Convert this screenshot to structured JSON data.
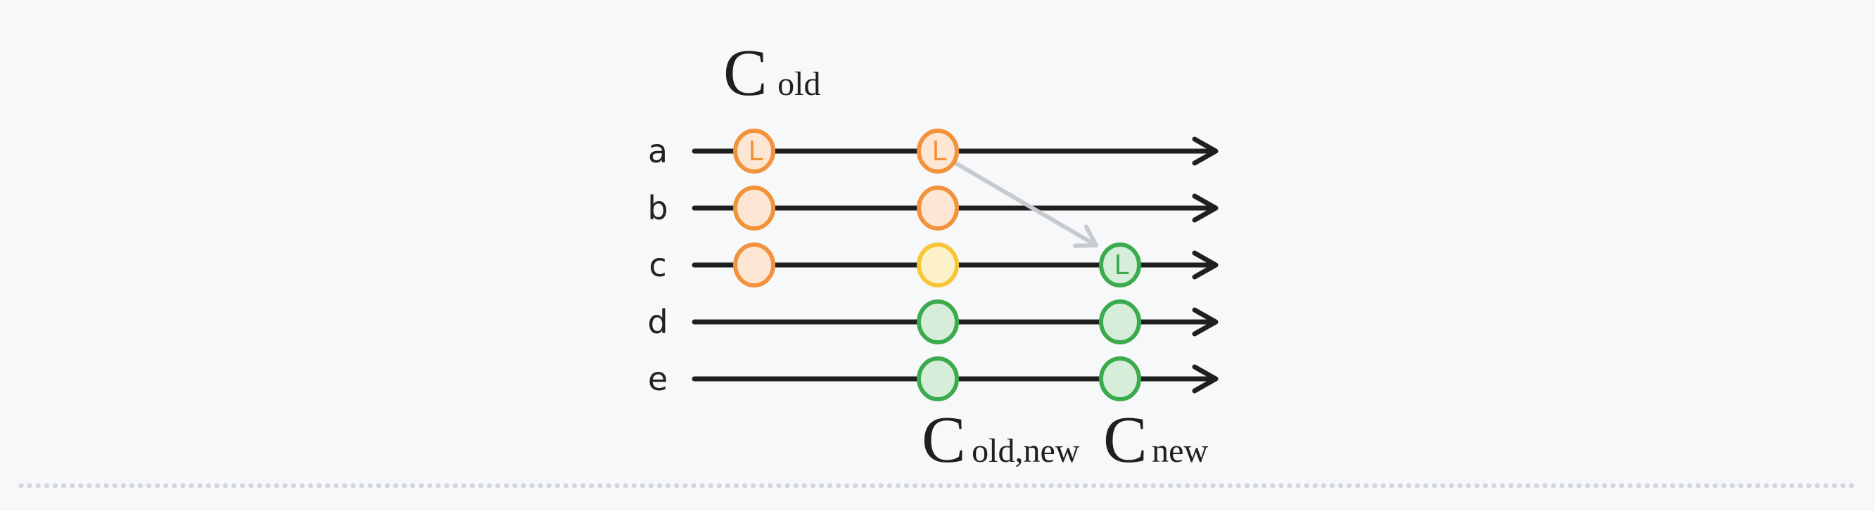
{
  "rows": [
    {
      "id": "a",
      "label": "a"
    },
    {
      "id": "b",
      "label": "b"
    },
    {
      "id": "c",
      "label": "c"
    },
    {
      "id": "d",
      "label": "d"
    },
    {
      "id": "e",
      "label": "e"
    }
  ],
  "labels": {
    "c_old": {
      "main": "C",
      "sub": "old"
    },
    "c_old_new": {
      "main": "C",
      "sub": "old,new"
    },
    "c_new": {
      "main": "C",
      "sub": "new"
    }
  },
  "nodes": [
    {
      "row": "a",
      "stage": 0,
      "status": "old",
      "leader": true,
      "leader_mark": "L"
    },
    {
      "row": "b",
      "stage": 0,
      "status": "old",
      "leader": false
    },
    {
      "row": "c",
      "stage": 0,
      "status": "old",
      "leader": false
    },
    {
      "row": "a",
      "stage": 1,
      "status": "old",
      "leader": true,
      "leader_mark": "L"
    },
    {
      "row": "b",
      "stage": 1,
      "status": "old",
      "leader": false
    },
    {
      "row": "c",
      "stage": 1,
      "status": "transition",
      "leader": false
    },
    {
      "row": "d",
      "stage": 1,
      "status": "new",
      "leader": false
    },
    {
      "row": "e",
      "stage": 1,
      "status": "new",
      "leader": false
    },
    {
      "row": "c",
      "stage": 2,
      "status": "new",
      "leader": true,
      "leader_mark": "L"
    },
    {
      "row": "d",
      "stage": 2,
      "status": "new",
      "leader": false
    },
    {
      "row": "e",
      "stage": 2,
      "status": "new",
      "leader": false
    }
  ],
  "transfer_arrow": {
    "from": {
      "row": "a",
      "stage": 1
    },
    "to": {
      "row": "c",
      "stage": 2
    }
  },
  "colors": {
    "old_stroke": "#f2923a",
    "old_fill": "#fde6d4",
    "transition_stroke": "#f6c636",
    "transition_fill": "#fdf1c9",
    "new_stroke": "#3bab4e",
    "new_fill": "#d6eed9",
    "line": "#1f1f1f",
    "transfer_arrow": "#c7cacf",
    "background": "#f7f8fa",
    "divider": "#d3d6da"
  }
}
